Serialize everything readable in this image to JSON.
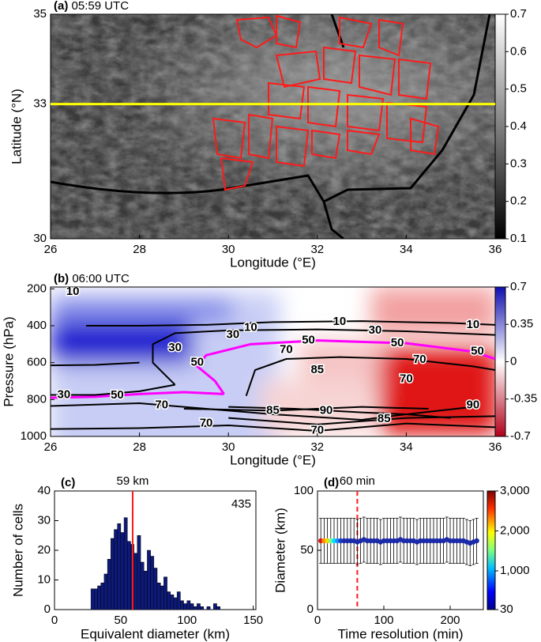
{
  "chart_data": [
    {
      "type": "image",
      "panel_label": "(a)",
      "title": "05:59 UTC",
      "xlabel": "Longitude (°E)",
      "ylabel": "Latitude (°N)",
      "xlim": [
        26,
        36
      ],
      "ylim": [
        30,
        35
      ],
      "xticks": [
        26,
        28,
        30,
        32,
        34,
        36
      ],
      "yticks": [
        30,
        33,
        35
      ],
      "section_latitude": 33,
      "section_color": "#ffff00",
      "cell_color": "#ff1a1a",
      "colorbar_lim": [
        0.1,
        0.7
      ],
      "colorbar_ticks": [
        0.1,
        0.2,
        0.3,
        0.4,
        0.5,
        0.6,
        0.7
      ]
    },
    {
      "type": "contour",
      "panel_label": "(b)",
      "title": "06:00 UTC",
      "xlabel": "Longitude (°E)",
      "ylabel": "Pressure (hPa)",
      "xlim": [
        26,
        36
      ],
      "ylim": [
        1000,
        190
      ],
      "xticks": [
        26,
        28,
        30,
        32,
        34,
        36
      ],
      "yticks": [
        200,
        400,
        600,
        800,
        1000
      ],
      "colorbar_lim": [
        -0.7,
        0.7
      ],
      "colorbar_ticks": [
        0.7,
        0.35,
        0,
        -0.35,
        -0.7
      ],
      "highlight_level": 50,
      "highlight_color": "#ff00ff",
      "contours": [
        {
          "level": 10,
          "x": [
            26.8,
            28,
            29.5,
            31,
            33,
            35,
            36
          ],
          "p": [
            400,
            400,
            395,
            380,
            375,
            385,
            395
          ]
        },
        {
          "level": 30,
          "x": [
            28.8,
            28.3,
            28.3,
            28.8,
            30,
            32,
            34,
            36
          ],
          "p": [
            720,
            600,
            500,
            440,
            425,
            420,
            430,
            450
          ]
        },
        {
          "level": 50,
          "x": [
            29.9,
            29.7,
            29.3,
            29.5,
            30.5,
            32,
            34,
            35.5,
            36
          ],
          "p": [
            770,
            700,
            620,
            560,
            500,
            480,
            495,
            540,
            580
          ]
        },
        {
          "level": 70,
          "x": [
            30.4,
            30.6,
            31.3,
            32.5,
            34,
            35.5,
            36
          ],
          "p": [
            780,
            640,
            580,
            570,
            580,
            620,
            640
          ]
        },
        {
          "level": 50,
          "x": [
            26,
            27,
            28,
            29,
            29.9
          ],
          "p": [
            790,
            785,
            770,
            760,
            770
          ]
        },
        {
          "level": 30,
          "x": [
            26,
            27,
            28,
            28.8
          ],
          "p": [
            775,
            775,
            755,
            720
          ]
        },
        {
          "level": 10,
          "x": [
            26,
            27,
            28
          ],
          "p": [
            615,
            612,
            600
          ]
        },
        {
          "level": 70,
          "x": [
            26,
            28,
            29.5,
            31,
            33,
            34,
            35
          ],
          "p": [
            835,
            820,
            850,
            880,
            910,
            880,
            900
          ]
        },
        {
          "level": 85,
          "x": [
            29,
            31,
            33,
            34.5
          ],
          "p": [
            850,
            860,
            840,
            850
          ]
        },
        {
          "level": 90,
          "x": [
            30,
            31.5,
            33,
            34,
            35.5
          ],
          "p": [
            840,
            850,
            870,
            880,
            840
          ]
        },
        {
          "level": 85,
          "x": [
            30,
            32,
            34,
            36
          ],
          "p": [
            900,
            935,
            900,
            890
          ]
        },
        {
          "level": 70,
          "x": [
            26,
            28,
            30,
            32,
            34,
            36
          ],
          "p": [
            960,
            955,
            940,
            970,
            930,
            950
          ]
        }
      ],
      "contour_labels": [
        {
          "level": 10,
          "x": 26.5,
          "p": 215
        },
        {
          "level": 10,
          "x": 30.5,
          "p": 410
        },
        {
          "level": 10,
          "x": 32.5,
          "p": 378
        },
        {
          "level": 10,
          "x": 35.5,
          "p": 395
        },
        {
          "level": 30,
          "x": 30.1,
          "p": 450
        },
        {
          "level": 30,
          "x": 33.3,
          "p": 425
        },
        {
          "level": 30,
          "x": 28.8,
          "p": 520
        },
        {
          "level": 30,
          "x": 26.3,
          "p": 775
        },
        {
          "level": 50,
          "x": 31.8,
          "p": 480
        },
        {
          "level": 50,
          "x": 33.8,
          "p": 495
        },
        {
          "level": 50,
          "x": 35.6,
          "p": 540
        },
        {
          "level": 50,
          "x": 29.3,
          "p": 600
        },
        {
          "level": 50,
          "x": 27.5,
          "p": 778
        },
        {
          "level": 70,
          "x": 31.3,
          "p": 530
        },
        {
          "level": 70,
          "x": 34.3,
          "p": 585
        },
        {
          "level": 70,
          "x": 28.5,
          "p": 830
        },
        {
          "level": 70,
          "x": 34,
          "p": 690
        },
        {
          "level": 85,
          "x": 32,
          "p": 640
        },
        {
          "level": 85,
          "x": 31,
          "p": 860
        },
        {
          "level": 85,
          "x": 33.5,
          "p": 905
        },
        {
          "level": 90,
          "x": 32.2,
          "p": 860
        },
        {
          "level": 90,
          "x": 35.5,
          "p": 830
        },
        {
          "level": 70,
          "x": 29.5,
          "p": 930
        },
        {
          "level": 70,
          "x": 32,
          "p": 968
        }
      ]
    },
    {
      "type": "histogram",
      "panel_label": "(c)",
      "xlabel": "Equivalent diameter (km)",
      "ylabel": "Number of cells",
      "xlim": [
        0,
        152
      ],
      "ylim": [
        0,
        40
      ],
      "xticks": [
        0,
        50,
        100,
        150
      ],
      "yticks": [
        0,
        10,
        20,
        30,
        40
      ],
      "color": "#0d1a7a",
      "marker": 59,
      "marker_label": "59 km",
      "marker_color": "#ff1a1a",
      "count_label": "435",
      "bins": [
        27.5,
        30,
        32.5,
        35,
        37.5,
        40,
        42.5,
        45,
        47.5,
        50,
        52.5,
        55,
        57.5,
        60,
        62.5,
        65,
        67.5,
        70,
        72.5,
        75,
        77.5,
        80,
        82.5,
        85,
        87.5,
        90,
        92.5,
        95,
        97.5,
        100,
        102.5,
        105,
        107.5,
        110,
        112.5,
        115,
        117.5,
        120,
        122.5,
        125
      ],
      "counts": [
        7,
        7,
        8,
        9,
        12,
        17,
        24,
        27,
        29,
        26,
        31,
        23,
        22,
        19,
        25,
        16,
        13,
        20,
        18,
        14,
        9,
        8,
        11,
        6,
        5,
        4,
        6,
        3,
        2,
        3,
        2,
        1,
        2,
        1,
        0,
        1,
        0,
        2,
        1
      ]
    },
    {
      "type": "errorbar",
      "panel_label": "(d)",
      "xlabel": "Time resolution (min)",
      "ylabel": "Diameter (km)",
      "xlim": [
        0,
        250
      ],
      "ylim": [
        0,
        100
      ],
      "xticks": [
        0,
        100,
        200
      ],
      "yticks": [
        0,
        50,
        100
      ],
      "marker": 60,
      "marker_label": "60 min",
      "marker_color": "#ff1a1a",
      "colorbar_lim": [
        30,
        3000
      ],
      "colorbar_ticks": [
        30,
        {
          "value": 1000,
          "label": "1,000"
        },
        {
          "value": 2000,
          "label": "2,000"
        },
        {
          "value": 3000,
          "label": "3,000"
        }
      ],
      "x": [
        5,
        10,
        15,
        20,
        25,
        30,
        35,
        40,
        45,
        50,
        55,
        60,
        65,
        70,
        75,
        80,
        85,
        90,
        95,
        100,
        105,
        110,
        115,
        120,
        125,
        130,
        135,
        140,
        145,
        150,
        155,
        160,
        165,
        170,
        175,
        180,
        185,
        190,
        195,
        200,
        205,
        210,
        215,
        220,
        225,
        230,
        235,
        240
      ],
      "values": [
        58,
        58,
        58,
        58,
        58,
        58,
        58,
        58,
        58,
        58,
        58,
        57,
        58,
        59,
        58,
        58,
        58,
        58,
        57,
        58,
        58,
        58,
        58,
        58,
        59,
        58,
        58,
        58,
        58,
        57,
        58,
        58,
        58,
        58,
        58,
        58,
        58,
        58,
        59,
        58,
        58,
        58,
        58,
        58,
        57,
        56,
        57,
        58
      ],
      "errors": [
        19,
        19,
        19,
        19,
        19,
        19,
        19,
        19,
        19,
        19,
        19,
        19,
        19,
        19,
        19,
        19,
        19,
        19,
        19,
        19,
        19,
        19,
        19,
        19,
        19,
        19,
        19,
        19,
        19,
        19,
        19,
        19,
        19,
        19,
        19,
        19,
        19,
        19,
        19,
        19,
        19,
        19,
        19,
        19,
        19,
        19,
        19,
        19
      ],
      "colors": [
        "#d7191c",
        "#ff8c00",
        "#ffd700",
        "#80ff80",
        "#00e5ff",
        "#1e90ff",
        "#1c3fc8",
        "#1a2aa8",
        "#1a2aa8",
        "#1a2aa8",
        "#1a2aa8",
        "#1a2aa8",
        "#1a2aa8",
        "#1a2aa8",
        "#1a2aa8",
        "#1a2aa8",
        "#1a2aa8",
        "#1a2aa8",
        "#1a2aa8",
        "#1a2aa8",
        "#1a2aa8",
        "#1a2aa8",
        "#1a2aa8",
        "#1a2aa8",
        "#1a2aa8",
        "#1a2aa8",
        "#1a2aa8",
        "#1a2aa8",
        "#1a2aa8",
        "#1a2aa8",
        "#1a2aa8",
        "#1a2aa8",
        "#1a2aa8",
        "#1a2aa8",
        "#1a2aa8",
        "#1a2aa8",
        "#1a2aa8",
        "#1a2aa8",
        "#1a2aa8",
        "#1a2aa8",
        "#1a2aa8",
        "#1a2aa8",
        "#1a2aa8",
        "#1a2aa8",
        "#1a2aa8",
        "#1a2aa8",
        "#1a2aa8",
        "#1a2aa8"
      ]
    }
  ]
}
